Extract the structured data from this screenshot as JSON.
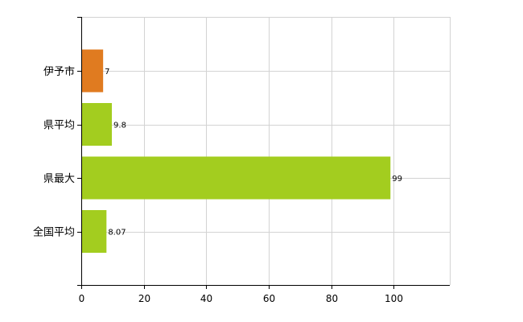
{
  "chart_data": {
    "type": "bar",
    "orientation": "horizontal",
    "title": "",
    "xlabel": "",
    "ylabel": "",
    "categories": [
      "伊予市",
      "県平均",
      "県最大",
      "全国平均"
    ],
    "values": [
      7,
      9.8,
      99,
      8.07
    ],
    "data_labels": [
      "7",
      "9.8",
      "99",
      "8.07"
    ],
    "bar_colors": [
      "#e07b20",
      "#a3cd1f",
      "#a3cd1f",
      "#a3cd1f"
    ],
    "xlim": [
      0,
      118
    ],
    "x_ticks": [
      0,
      20,
      40,
      60,
      80,
      100
    ],
    "grid": true,
    "grid_color": "#d3d3d3",
    "legend": "none"
  }
}
